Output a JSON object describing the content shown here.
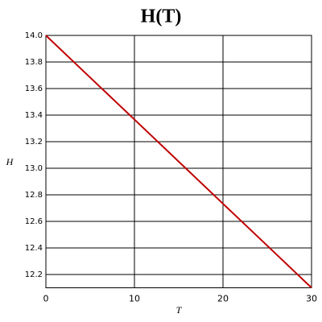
{
  "chart_data": {
    "type": "line",
    "title": "H(T)",
    "x_label": "T",
    "y_label": "H",
    "x": [
      0,
      5,
      10,
      15,
      20,
      25,
      30
    ],
    "series": [
      {
        "name": "H",
        "color": "#c00000",
        "values": [
          14.0,
          13.683,
          13.367,
          13.05,
          12.733,
          12.417,
          12.1
        ]
      }
    ],
    "xlim": [
      0,
      30
    ],
    "xticks": [
      0,
      10,
      20,
      30
    ],
    "ylim": [
      12.1,
      14.0
    ],
    "yticks": [
      12.2,
      12.4,
      12.6,
      12.8,
      {
        "value": 13,
        "label": "13.0"
      },
      13.2,
      13.4,
      13.6,
      13.8,
      {
        "value": 14,
        "label": "14.0"
      }
    ],
    "grid": true
  }
}
